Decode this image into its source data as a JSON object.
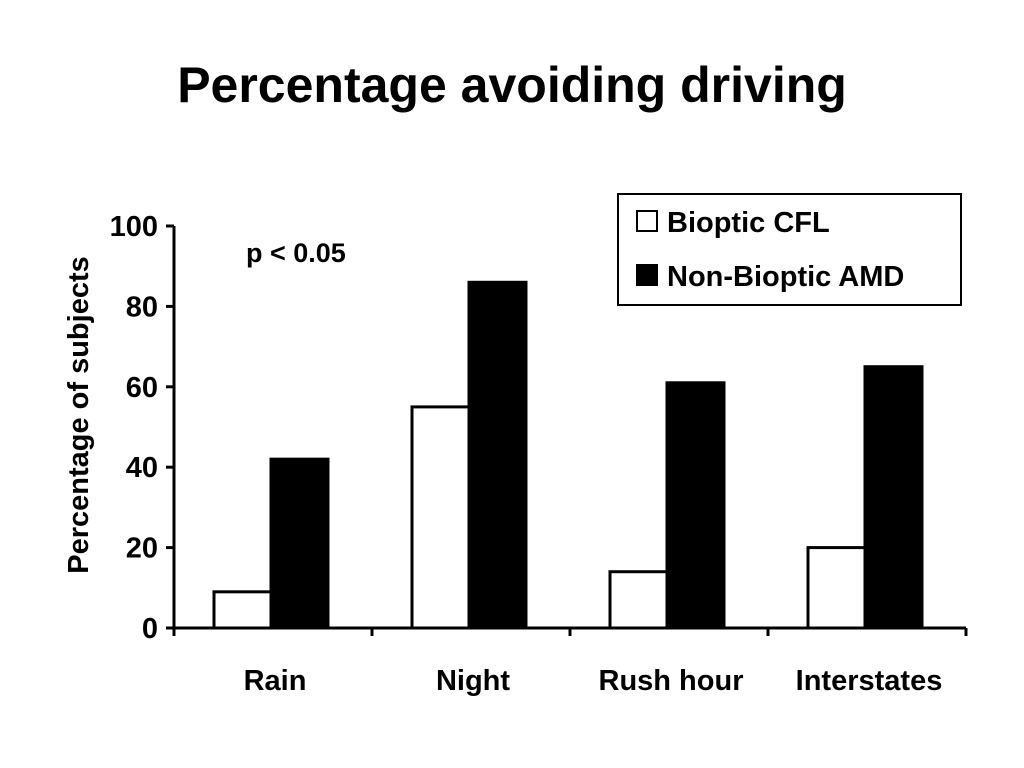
{
  "slide": {
    "title": "Percentage avoiding driving"
  },
  "chart_data": {
    "type": "bar",
    "title": "Percentage avoiding driving",
    "xlabel": "",
    "ylabel": "Percentage of subjects",
    "categories": [
      "Rain",
      "Night",
      "Rush hour",
      "Interstates"
    ],
    "series": [
      {
        "name": "Bioptic CFL",
        "values": [
          9,
          55,
          14,
          20
        ],
        "fill": "#ffffff",
        "stroke": "#000000"
      },
      {
        "name": "Non-Bioptic AMD",
        "values": [
          42,
          86,
          61,
          65
        ],
        "fill": "#000000",
        "stroke": "#000000"
      }
    ],
    "ylim": [
      0,
      100
    ],
    "yticks": [
      "0",
      "20",
      "40",
      "60",
      "80",
      "100"
    ],
    "annotation": "p < 0.05",
    "legend_position": "top-right",
    "grid": false
  }
}
